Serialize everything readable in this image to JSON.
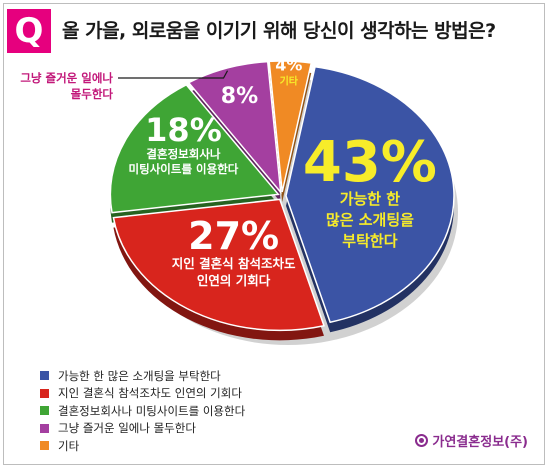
{
  "badge": "Q",
  "question": "올 가을, 외로움을 이기기 위해 당신이 생각하는 방법은?",
  "brand": "가연결혼정보(주)",
  "chart_data": {
    "type": "pie",
    "title": "올 가을, 외로움을 이기기 위해 당신이 생각하는 방법은?",
    "unit": "%",
    "slices": [
      {
        "label": "가능한 한 많은 소개팅을 부탁한다",
        "value": 43,
        "color": "#3b54a5",
        "pct_color": "#f7ec2a",
        "text_color": "#f7ec2a",
        "inner_lines": [
          "가능한 한",
          "많은 소개팅을",
          "부탁한다"
        ]
      },
      {
        "label": "지인 결혼식 참석조차도 인연의 기회다",
        "value": 27,
        "color": "#d8251d",
        "pct_color": "#ffffff",
        "text_color": "#ffffff",
        "inner_lines": [
          "지인 결혼식 참석조차도",
          "인연의 기회다"
        ]
      },
      {
        "label": "결혼정보회사나 미팅사이트를 이용한다",
        "value": 18,
        "color": "#3fa535",
        "pct_color": "#ffffff",
        "text_color": "#ffffff",
        "inner_lines": [
          "결혼정보회사나",
          "미팅사이트를 이용한다"
        ]
      },
      {
        "label": "그냥 즐거운 일에나 몰두한다",
        "value": 8,
        "color": "#a43fa0",
        "pct_color": "#ffffff",
        "text_color": "#ffffff",
        "inner_lines": []
      },
      {
        "label": "기타",
        "value": 4,
        "color": "#f08a24",
        "pct_color": "#ffffff",
        "text_color": "#f7ec2a",
        "inner_lines": [
          "기타"
        ]
      }
    ],
    "callout": {
      "slice_index": 3,
      "lines": [
        "그냥 즐거운 일에나",
        "몰두한다"
      ],
      "color": "#c2187a"
    },
    "legend": "bottom-left"
  }
}
